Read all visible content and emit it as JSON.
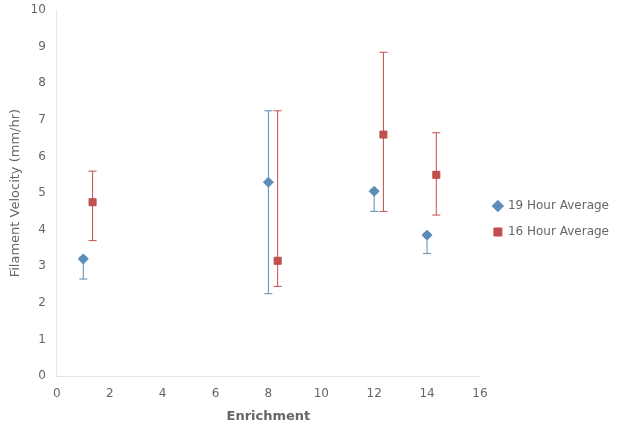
{
  "chart_data": {
    "type": "scatter",
    "xlabel": "Enrichment",
    "ylabel": "Filament Velocity (mm/hr)",
    "xlim": [
      0,
      16
    ],
    "ylim": [
      0,
      10
    ],
    "xticks": [
      0,
      2,
      4,
      6,
      8,
      10,
      12,
      14,
      16
    ],
    "yticks": [
      0,
      1,
      2,
      3,
      4,
      5,
      6,
      7,
      8,
      9,
      10
    ],
    "grid": false,
    "legend": "right",
    "series": [
      {
        "name": "19 Hour Average",
        "color": "#5B8DB8",
        "marker": "diamond",
        "x": [
          1,
          8,
          12,
          14
        ],
        "values": [
          3.2,
          5.3,
          5.05,
          3.85
        ],
        "yerr_low": [
          0.55,
          3.05,
          0.55,
          0.5
        ],
        "yerr_high": [
          0.05,
          1.95,
          0.05,
          0.05
        ]
      },
      {
        "name": "16 Hour Average",
        "color": "#C0504D",
        "marker": "square",
        "x": [
          1.35,
          8.35,
          12.35,
          14.35
        ],
        "values": [
          4.75,
          3.15,
          6.6,
          5.5
        ],
        "yerr_low": [
          1.05,
          0.7,
          2.1,
          1.1
        ],
        "yerr_high": [
          0.85,
          4.1,
          2.25,
          1.15
        ]
      }
    ]
  }
}
